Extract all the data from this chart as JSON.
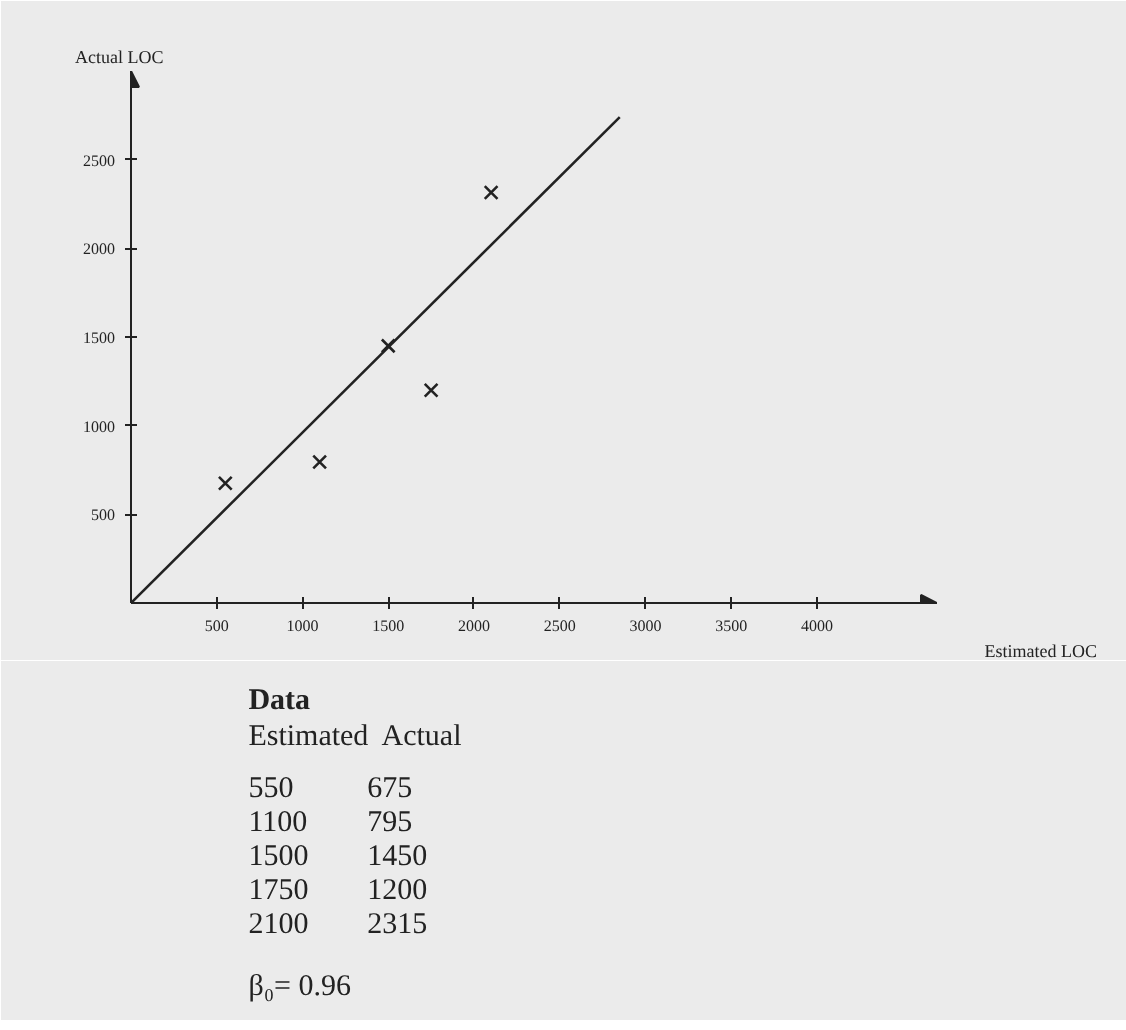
{
  "chart_data": {
    "type": "scatter",
    "xlabel": "Estimated LOC",
    "ylabel": "Actual LOC",
    "xlim": [
      0,
      4700
    ],
    "ylim": [
      0,
      3000
    ],
    "xticks": [
      500,
      1000,
      1500,
      2000,
      2500,
      3000,
      3500,
      4000
    ],
    "yticks": [
      500,
      1000,
      1500,
      2000,
      2500
    ],
    "grid": false,
    "series": [
      {
        "color": "#222222",
        "marker": "cross",
        "x": [
          550,
          1100,
          1500,
          1750,
          2100
        ],
        "values": [
          675,
          795,
          1450,
          1200,
          2315
        ]
      },
      {
        "type": "line",
        "color": "#222222",
        "x": [
          0,
          2850
        ],
        "values": [
          0,
          2740
        ]
      }
    ],
    "annotations": [
      "Data",
      "Estimated",
      "Actual",
      "550",
      "675",
      "1100",
      "795",
      "1500",
      "1450",
      "1750",
      "1200",
      "2100",
      "2315",
      "β₀= 0.96"
    ]
  }
}
